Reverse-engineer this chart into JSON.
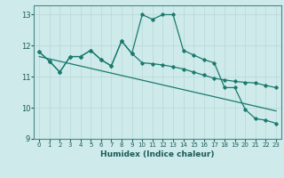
{
  "xlabel": "Humidex (Indice chaleur)",
  "bg_color": "#ceeaea",
  "line_color": "#1a7a6e",
  "grid_color": "#b8d8d8",
  "xlim": [
    -0.5,
    23.5
  ],
  "ylim": [
    9,
    13.3
  ],
  "yticks": [
    9,
    10,
    11,
    12,
    13
  ],
  "xticks": [
    0,
    1,
    2,
    3,
    4,
    5,
    6,
    7,
    8,
    9,
    10,
    11,
    12,
    13,
    14,
    15,
    16,
    17,
    18,
    19,
    20,
    21,
    22,
    23
  ],
  "line1_x": [
    0,
    1,
    2,
    3,
    4,
    5,
    6,
    7,
    8,
    9,
    10,
    11,
    12,
    13,
    14,
    15,
    16,
    17,
    18,
    19,
    20,
    21,
    22,
    23
  ],
  "line1_y": [
    11.8,
    11.5,
    11.15,
    11.65,
    11.65,
    11.85,
    11.55,
    11.35,
    12.15,
    11.75,
    11.45,
    11.42,
    11.38,
    11.32,
    11.25,
    11.15,
    11.05,
    10.95,
    10.9,
    10.85,
    10.82,
    10.8,
    10.72,
    10.65
  ],
  "line2_x": [
    0,
    1,
    2,
    3,
    4,
    5,
    6,
    7,
    8,
    9,
    10,
    11,
    12,
    13,
    14,
    15,
    16,
    17,
    18,
    19,
    20,
    21,
    22,
    23
  ],
  "line2_y": [
    11.8,
    11.5,
    11.15,
    11.65,
    11.65,
    11.85,
    11.55,
    11.35,
    12.15,
    11.75,
    13.0,
    12.85,
    13.0,
    13.0,
    11.85,
    11.7,
    11.55,
    11.45,
    10.65,
    10.65,
    9.95,
    9.65,
    9.6,
    9.5
  ],
  "trend_x": [
    0,
    23
  ],
  "trend_y": [
    11.65,
    9.9
  ]
}
